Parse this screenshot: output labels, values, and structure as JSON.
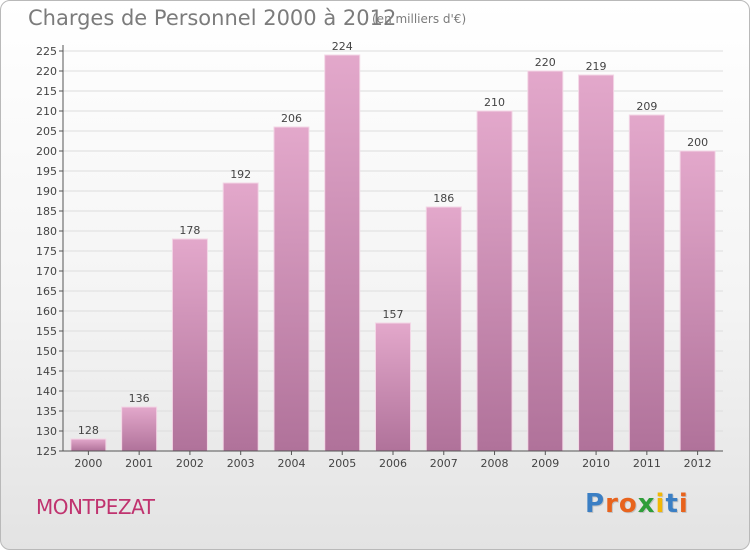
{
  "title": "Charges de Personnel 2000 à 2012",
  "subtitle": "(en milliers d'€)",
  "commune": "MONTPEZAT",
  "logo": {
    "letters": [
      "P",
      "r",
      "o",
      "x",
      "i",
      "t",
      "i"
    ],
    "colors": [
      "#3b7fc4",
      "#e8631d",
      "#e8631d",
      "#2f9e3a",
      "#f2b705",
      "#3b7fc4",
      "#e8631d"
    ]
  },
  "colors": {
    "bar_light": "#e3a8cb",
    "bar_dark": "#b0729a",
    "bar_edge": "#f3d6e6",
    "grid": "#dddddd",
    "axis": "#555555"
  },
  "chart_data": {
    "type": "bar",
    "title": "Charges de Personnel 2000 à 2012",
    "subtitle": "(en milliers d'€)",
    "categories": [
      "2000",
      "2001",
      "2002",
      "2003",
      "2004",
      "2005",
      "2006",
      "2007",
      "2008",
      "2009",
      "2010",
      "2011",
      "2012"
    ],
    "values": [
      128,
      136,
      178,
      192,
      206,
      224,
      157,
      186,
      210,
      220,
      219,
      209,
      200
    ],
    "value_labels": [
      "128",
      "136",
      "178",
      "192",
      "206",
      "224",
      "157",
      "186",
      "210",
      "220",
      "219",
      "209",
      "200"
    ],
    "ylim": [
      125,
      225
    ],
    "yticks": [
      125,
      130,
      135,
      140,
      145,
      150,
      155,
      160,
      165,
      170,
      175,
      180,
      185,
      190,
      195,
      200,
      205,
      210,
      215,
      220,
      225
    ],
    "grid": true,
    "xlabel": "",
    "ylabel": ""
  }
}
